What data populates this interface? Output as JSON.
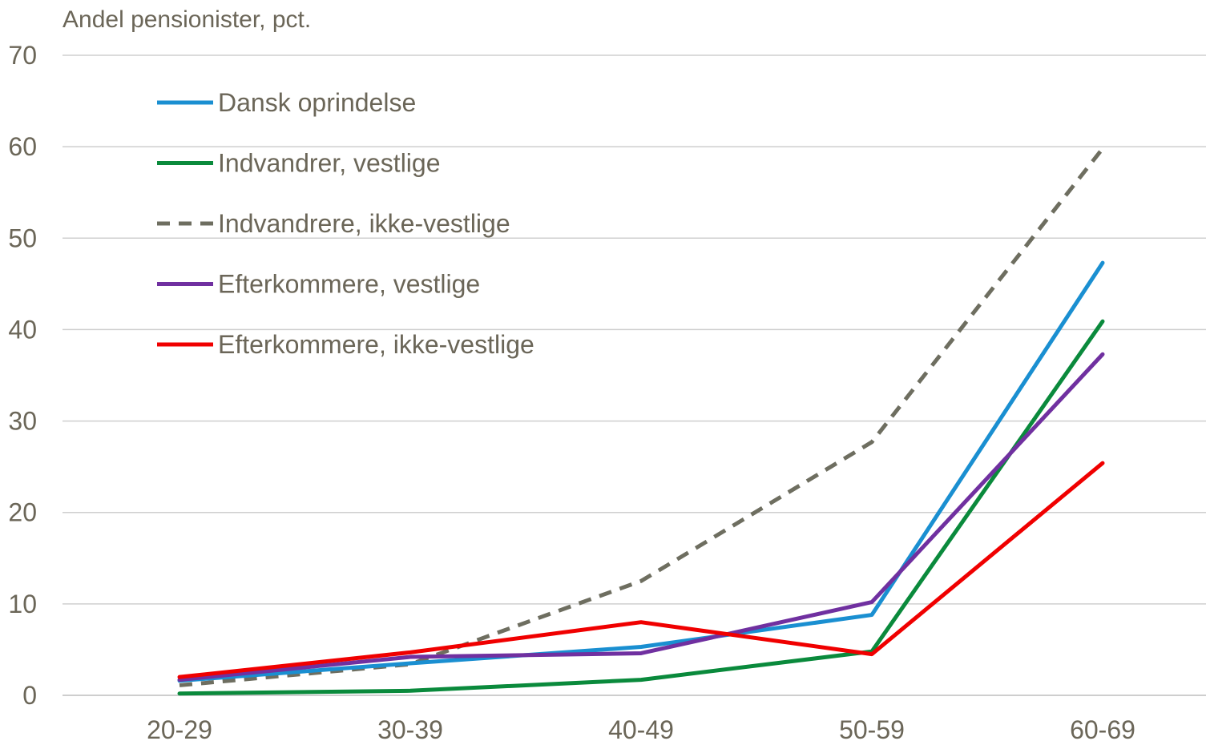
{
  "chart_data": {
    "type": "line",
    "ylabel": "Andel pensionister, pct.",
    "xlabel": "",
    "categories": [
      "20-29",
      "30-39",
      "40-49",
      "50-59",
      "60-69"
    ],
    "ylim": [
      0,
      70
    ],
    "yticks": [
      0,
      10,
      20,
      30,
      40,
      50,
      60,
      70
    ],
    "grid": true,
    "legend_position": "top-left",
    "series": [
      {
        "name": "Dansk oprindelse",
        "color": "#1a8fd1",
        "dashed": false,
        "values": [
          1.6,
          3.5,
          5.3,
          8.8,
          47.3
        ]
      },
      {
        "name": "Indvandrer, vestlige",
        "color": "#0a8a3c",
        "dashed": false,
        "values": [
          0.2,
          0.5,
          1.7,
          4.8,
          40.9
        ]
      },
      {
        "name": "Indvandrere, ikke-vestlige",
        "color": "#6e6e60",
        "dashed": true,
        "values": [
          1.1,
          3.4,
          12.5,
          27.7,
          59.8
        ]
      },
      {
        "name": "Efterkommere, vestlige",
        "color": "#7030a0",
        "dashed": false,
        "values": [
          1.7,
          4.2,
          4.6,
          10.2,
          37.3
        ]
      },
      {
        "name": "Efterkommere, ikke-vestlige",
        "color": "#f00000",
        "dashed": false,
        "values": [
          2.0,
          4.7,
          8.0,
          4.5,
          25.4
        ]
      }
    ]
  }
}
